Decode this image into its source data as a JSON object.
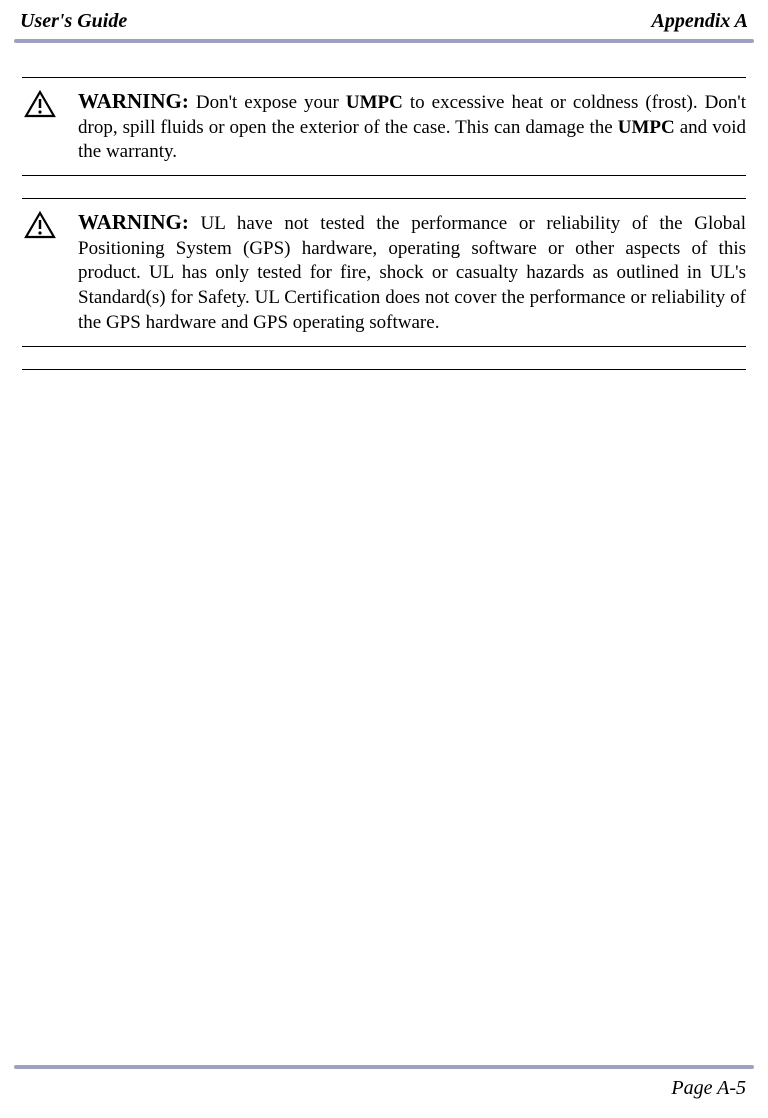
{
  "header": {
    "left": "User's Guide",
    "right": "Appendix A"
  },
  "warnings": [
    {
      "label": "WARNING:",
      "segments": [
        {
          "t": " Don't expose your ",
          "b": false
        },
        {
          "t": "UMPC",
          "b": true
        },
        {
          "t": " to excessive heat or coldness (frost). Don't drop, spill fluids or open the exterior of the case. This can damage the ",
          "b": false
        },
        {
          "t": "UMPC",
          "b": true
        },
        {
          "t": " and void the warranty.",
          "b": false
        }
      ]
    },
    {
      "label": "WARNING:",
      "segments": [
        {
          "t": " UL have not tested the performance or reliability of the Global Positioning System (GPS) hardware, operating software or other aspects of this product. UL has only tested for fire, shock or casualty hazards as outlined in UL's Standard(s) for Safety. UL Certification does not cover the performance or reliability of the GPS hardware and GPS operating software.",
          "b": false
        }
      ]
    }
  ],
  "footer": {
    "page": "Page A-5"
  },
  "style": {
    "rule_color": "#a0a0c0",
    "icon_stroke": "#000000"
  }
}
